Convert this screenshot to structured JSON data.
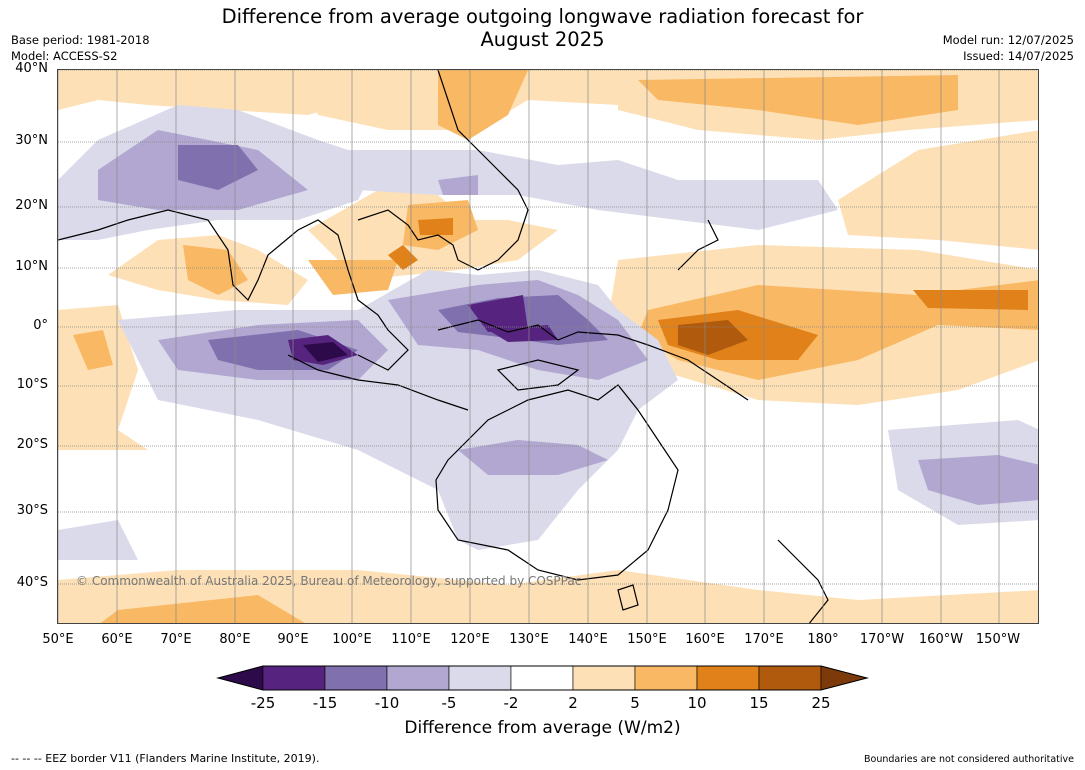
{
  "title_line1": "Difference from average outgoing longwave radiation forecast for",
  "title_line2": "August 2025",
  "meta_left": {
    "base_period": "Base period: 1981-2018",
    "model": "Model: ACCESS-S2"
  },
  "meta_right": {
    "model_run": "Model run: 12/07/2025",
    "issued": "Issued: 14/07/2025"
  },
  "lat_labels": [
    "40°N",
    "30°N",
    "20°N",
    "10°N",
    "0°",
    "10°S",
    "20°S",
    "30°S",
    "40°S"
  ],
  "lon_labels": [
    "50°E",
    "60°E",
    "70°E",
    "80°E",
    "90°E",
    "100°E",
    "110°E",
    "120°E",
    "130°E",
    "140°E",
    "150°E",
    "160°E",
    "170°E",
    "180°",
    "170°W",
    "160°W",
    "150°W"
  ],
  "copyright": "© Commonwealth of Australia 2025, Bureau of Meteorology, supported by COSPPac",
  "legend": {
    "title": "Difference from average (W/m2)",
    "ticks": [
      "-25",
      "-15",
      "-10",
      "-5",
      "-2",
      "2",
      "5",
      "10",
      "15",
      "25"
    ],
    "colors": [
      "#2d0a4a",
      "#56247f",
      "#8070ae",
      "#b1a7d1",
      "#dadaea",
      "#ffffff",
      "#fde0b6",
      "#f9b864",
      "#e08219",
      "#b05a0e",
      "#7c3a0b"
    ]
  },
  "footer_left": "-- -- -- EEZ border V11 (Flanders Marine Institute, 2019).",
  "footer_right": "Boundaries are not considered authoritative"
}
